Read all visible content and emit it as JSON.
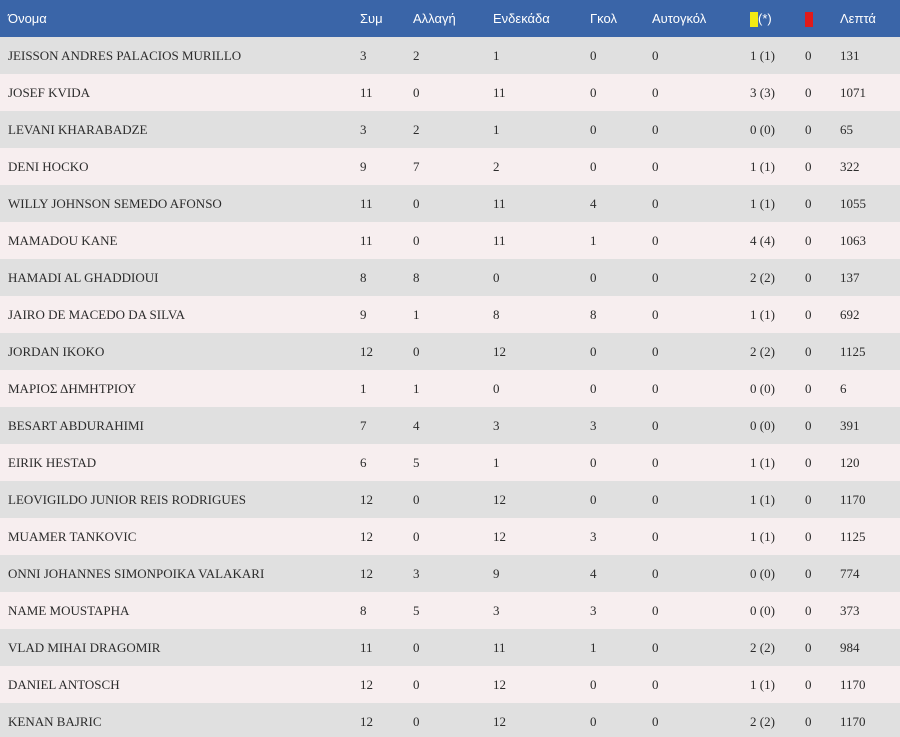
{
  "header": {
    "name": "Όνομα",
    "apps": "Συμ",
    "subs": "Αλλαγή",
    "starts": "Ενδεκάδα",
    "goals": "Γκολ",
    "own_goals": "Αυτογκόλ",
    "yellow_note": "(*)",
    "minutes": "Λεπτά",
    "yellow_icon": "yellow-card-icon",
    "red_icon": "red-card-icon",
    "colors": {
      "header_bg": "#3a65a8",
      "yellow": "#f2ea14",
      "red": "#e11a1a",
      "row_odd": "#e0e0e0",
      "row_even": "#f7eeef"
    }
  },
  "rows": [
    {
      "name": "JEISSON ANDRES PALACIOS MURILLO",
      "apps": "3",
      "subs": "2",
      "starts": "1",
      "goals": "0",
      "own_goals": "0",
      "yellow": "1 (1)",
      "red": "0",
      "minutes": "131"
    },
    {
      "name": "JOSEF KVIDA",
      "apps": "11",
      "subs": "0",
      "starts": "11",
      "goals": "0",
      "own_goals": "0",
      "yellow": "3 (3)",
      "red": "0",
      "minutes": "1071"
    },
    {
      "name": "LEVANI KHARABADZE",
      "apps": "3",
      "subs": "2",
      "starts": "1",
      "goals": "0",
      "own_goals": "0",
      "yellow": "0 (0)",
      "red": "0",
      "minutes": "65"
    },
    {
      "name": "DENI HOCKO",
      "apps": "9",
      "subs": "7",
      "starts": "2",
      "goals": "0",
      "own_goals": "0",
      "yellow": "1 (1)",
      "red": "0",
      "minutes": "322"
    },
    {
      "name": "WILLY JOHNSON SEMEDO AFONSO",
      "apps": "11",
      "subs": "0",
      "starts": "11",
      "goals": "4",
      "own_goals": "0",
      "yellow": "1 (1)",
      "red": "0",
      "minutes": "1055"
    },
    {
      "name": "MAMADOU KANE",
      "apps": "11",
      "subs": "0",
      "starts": "11",
      "goals": "1",
      "own_goals": "0",
      "yellow": "4 (4)",
      "red": "0",
      "minutes": "1063"
    },
    {
      "name": "HAMADI AL GHADDIOUI",
      "apps": "8",
      "subs": "8",
      "starts": "0",
      "goals": "0",
      "own_goals": "0",
      "yellow": "2 (2)",
      "red": "0",
      "minutes": "137"
    },
    {
      "name": "JAIRO DE MACEDO DA SILVA",
      "apps": "9",
      "subs": "1",
      "starts": "8",
      "goals": "8",
      "own_goals": "0",
      "yellow": "1 (1)",
      "red": "0",
      "minutes": "692"
    },
    {
      "name": "JORDAN IKOKO",
      "apps": "12",
      "subs": "0",
      "starts": "12",
      "goals": "0",
      "own_goals": "0",
      "yellow": "2 (2)",
      "red": "0",
      "minutes": "1125"
    },
    {
      "name": "ΜΑΡΙΟΣ ΔΗΜΗΤΡΙΟΥ",
      "apps": "1",
      "subs": "1",
      "starts": "0",
      "goals": "0",
      "own_goals": "0",
      "yellow": "0 (0)",
      "red": "0",
      "minutes": "6"
    },
    {
      "name": "BESART ABDURAHIMI",
      "apps": "7",
      "subs": "4",
      "starts": "3",
      "goals": "3",
      "own_goals": "0",
      "yellow": "0 (0)",
      "red": "0",
      "minutes": "391"
    },
    {
      "name": "EIRIK HESTAD",
      "apps": "6",
      "subs": "5",
      "starts": "1",
      "goals": "0",
      "own_goals": "0",
      "yellow": "1 (1)",
      "red": "0",
      "minutes": "120"
    },
    {
      "name": "LEOVIGILDO JUNIOR REIS RODRIGUES",
      "apps": "12",
      "subs": "0",
      "starts": "12",
      "goals": "0",
      "own_goals": "0",
      "yellow": "1 (1)",
      "red": "0",
      "minutes": "1170"
    },
    {
      "name": "MUAMER TANKOVIC",
      "apps": "12",
      "subs": "0",
      "starts": "12",
      "goals": "3",
      "own_goals": "0",
      "yellow": "1 (1)",
      "red": "0",
      "minutes": "1125"
    },
    {
      "name": "ONNI JOHANNES SIMONPOIKA VALAKARI",
      "apps": "12",
      "subs": "3",
      "starts": "9",
      "goals": "4",
      "own_goals": "0",
      "yellow": "0 (0)",
      "red": "0",
      "minutes": "774"
    },
    {
      "name": "NAME MOUSTAPHA",
      "apps": "8",
      "subs": "5",
      "starts": "3",
      "goals": "3",
      "own_goals": "0",
      "yellow": "0 (0)",
      "red": "0",
      "minutes": "373"
    },
    {
      "name": "VLAD MIHAI DRAGOMIR",
      "apps": "11",
      "subs": "0",
      "starts": "11",
      "goals": "1",
      "own_goals": "0",
      "yellow": "2 (2)",
      "red": "0",
      "minutes": "984"
    },
    {
      "name": "DANIEL ANTOSCH",
      "apps": "12",
      "subs": "0",
      "starts": "12",
      "goals": "0",
      "own_goals": "0",
      "yellow": "1 (1)",
      "red": "0",
      "minutes": "1170"
    },
    {
      "name": "KENAN BAJRIC",
      "apps": "12",
      "subs": "0",
      "starts": "12",
      "goals": "0",
      "own_goals": "0",
      "yellow": "2 (2)",
      "red": "0",
      "minutes": "1170"
    }
  ]
}
